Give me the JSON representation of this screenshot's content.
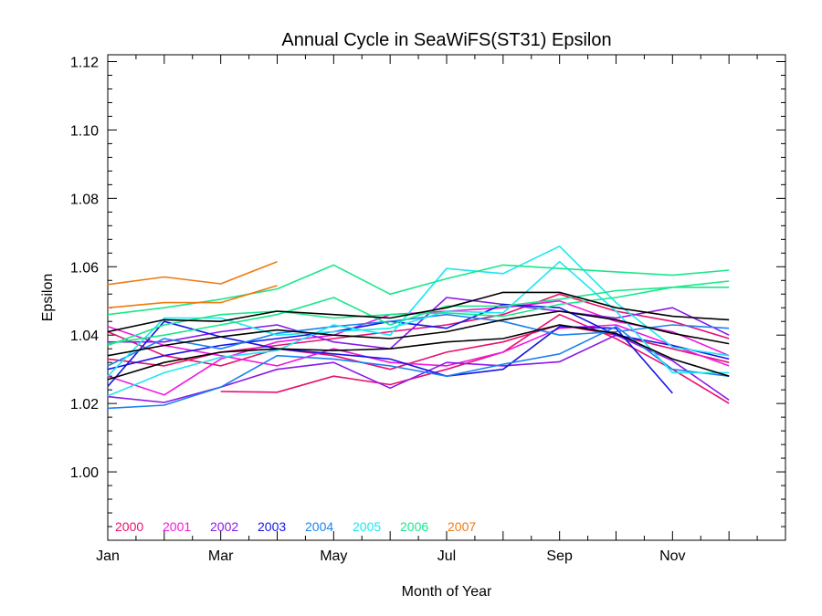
{
  "chart_data": {
    "type": "line",
    "title": "Annual Cycle in SeaWiFS(ST31) Epsilon",
    "xlabel": "Month of Year",
    "ylabel": "Epsilon",
    "xlim": [
      1,
      13
    ],
    "ylim": [
      0.98,
      1.122
    ],
    "x_ticks": [
      {
        "value": 1,
        "label": "Jan"
      },
      {
        "value": 3,
        "label": "Mar"
      },
      {
        "value": 5,
        "label": "May"
      },
      {
        "value": 7,
        "label": "Jul"
      },
      {
        "value": 9,
        "label": "Sep"
      },
      {
        "value": 11,
        "label": "Nov"
      }
    ],
    "y_ticks": [
      {
        "value": 1.0,
        "label": "1.00"
      },
      {
        "value": 1.02,
        "label": "1.02"
      },
      {
        "value": 1.04,
        "label": "1.04"
      },
      {
        "value": 1.06,
        "label": "1.06"
      },
      {
        "value": 1.08,
        "label": "1.08"
      },
      {
        "value": 1.1,
        "label": "1.10"
      },
      {
        "value": 1.12,
        "label": "1.12"
      }
    ],
    "legend_placement": "bottom-left",
    "legend": [
      {
        "name": "2000",
        "color": "#e8106e"
      },
      {
        "name": "2001",
        "color": "#f018e0"
      },
      {
        "name": "2002",
        "color": "#8a18ea"
      },
      {
        "name": "2003",
        "color": "#1414e6"
      },
      {
        "name": "2004",
        "color": "#1a82f0"
      },
      {
        "name": "2005",
        "color": "#1ae8f0"
      },
      {
        "name": "2006",
        "color": "#18e88a"
      },
      {
        "name": "2007",
        "color": "#f07a10"
      }
    ],
    "series": [
      {
        "color": "#e8106e",
        "x": [
          3,
          4,
          5,
          6,
          7,
          8,
          9,
          10,
          11,
          12
        ],
        "y": [
          1.0235,
          1.0233,
          1.028,
          1.0255,
          1.03,
          1.035,
          1.046,
          1.039,
          1.03,
          1.02
        ]
      },
      {
        "color": "#e8106e",
        "x": [
          1,
          2,
          3,
          4,
          5,
          6,
          7,
          8,
          9,
          10,
          11,
          12
        ],
        "y": [
          1.041,
          1.034,
          1.031,
          1.036,
          1.034,
          1.03,
          1.035,
          1.038,
          1.043,
          1.04,
          1.036,
          1.032
        ]
      },
      {
        "color": "#e8106e",
        "x": [
          1,
          2,
          3,
          4,
          5,
          6,
          7,
          8,
          9,
          10,
          11,
          12
        ],
        "y": [
          1.033,
          1.031,
          1.035,
          1.037,
          1.039,
          1.041,
          1.043,
          1.046,
          1.052,
          1.047,
          1.044,
          1.039
        ]
      },
      {
        "color": "#f018e0",
        "x": [
          1,
          2,
          3,
          4,
          5,
          6,
          7,
          8,
          9,
          10,
          11,
          12
        ],
        "y": [
          1.028,
          1.0225,
          1.033,
          1.038,
          1.04,
          1.046,
          1.047,
          1.048,
          1.05,
          1.044,
          1.041,
          1.034
        ]
      },
      {
        "color": "#f018e0",
        "x": [
          1,
          2,
          3,
          4,
          5,
          6,
          7,
          8,
          9,
          10,
          11,
          12
        ],
        "y": [
          1.0425,
          1.037,
          1.034,
          1.031,
          1.036,
          1.032,
          1.031,
          1.035,
          1.042,
          1.043,
          1.037,
          1.031
        ]
      },
      {
        "color": "#8a18ea",
        "x": [
          1,
          2,
          3,
          4,
          5,
          6,
          7,
          8,
          9,
          10,
          11,
          12
        ],
        "y": [
          1.022,
          1.0203,
          1.0248,
          1.03,
          1.032,
          1.0245,
          1.032,
          1.031,
          1.0322,
          1.04,
          1.0325,
          1.021
        ]
      },
      {
        "color": "#8a18ea",
        "x": [
          1,
          2,
          3,
          4,
          5,
          6,
          7,
          8,
          9,
          10,
          11,
          12
        ],
        "y": [
          1.038,
          1.038,
          1.041,
          1.043,
          1.038,
          1.036,
          1.051,
          1.049,
          1.047,
          1.045,
          1.048,
          1.04
        ]
      },
      {
        "color": "#1414e6",
        "x": [
          1,
          2,
          3,
          4,
          5,
          6,
          7,
          8,
          9,
          10,
          11
        ],
        "y": [
          1.025,
          1.044,
          1.0395,
          1.036,
          1.0345,
          1.033,
          1.028,
          1.03,
          1.0425,
          1.042,
          1.023
        ]
      },
      {
        "color": "#1414e6",
        "x": [
          1,
          2,
          3,
          4,
          5,
          6,
          7,
          8,
          9,
          10,
          11,
          12
        ],
        "y": [
          1.03,
          1.034,
          1.037,
          1.039,
          1.041,
          1.044,
          1.042,
          1.049,
          1.048,
          1.04,
          1.037,
          1.033
        ]
      },
      {
        "color": "#1a82f0",
        "x": [
          1,
          2,
          3,
          4,
          5,
          6,
          7,
          8,
          9,
          10,
          11,
          12
        ],
        "y": [
          1.0186,
          1.0195,
          1.0248,
          1.034,
          1.033,
          1.031,
          1.028,
          1.0315,
          1.0345,
          1.0425,
          1.03,
          1.028
        ]
      },
      {
        "color": "#1a82f0",
        "x": [
          1,
          2,
          3,
          4,
          5,
          6,
          7,
          8,
          9,
          10,
          11,
          12
        ],
        "y": [
          1.031,
          1.039,
          1.036,
          1.0405,
          1.0425,
          1.044,
          1.046,
          1.044,
          1.04,
          1.041,
          1.043,
          1.042
        ]
      },
      {
        "color": "#1ae8f0",
        "x": [
          1,
          2,
          3,
          4,
          5,
          6,
          7,
          8,
          9,
          10,
          11,
          12
        ],
        "y": [
          1.0222,
          1.029,
          1.0335,
          1.0355,
          1.043,
          1.04,
          1.0595,
          1.058,
          1.066,
          1.0495,
          1.0365,
          1.034
        ]
      },
      {
        "color": "#1ae8f0",
        "x": [
          1,
          2,
          3,
          4,
          5,
          6,
          7,
          8,
          9,
          10,
          11,
          12
        ],
        "y": [
          1.028,
          1.045,
          1.045,
          1.04,
          1.041,
          1.042,
          1.047,
          1.0465,
          1.0615,
          1.047,
          1.029,
          1.029
        ]
      },
      {
        "color": "#18e88a",
        "x": [
          1,
          2,
          3,
          4,
          5,
          6,
          7,
          8,
          9,
          10,
          11,
          12
        ],
        "y": [
          1.046,
          1.048,
          1.0505,
          1.0535,
          1.0605,
          1.052,
          1.0565,
          1.0605,
          1.0595,
          1.0585,
          1.0575,
          1.059
        ]
      },
      {
        "color": "#18e88a",
        "x": [
          1,
          2,
          3,
          4,
          5,
          6,
          7,
          8,
          9,
          10,
          11,
          12
        ],
        "y": [
          1.0375,
          1.04,
          1.043,
          1.046,
          1.051,
          1.043,
          1.0485,
          1.0485,
          1.0505,
          1.053,
          1.054,
          1.0558
        ]
      },
      {
        "color": "#18e88a",
        "x": [
          1,
          2,
          3,
          4,
          5,
          6,
          7,
          8,
          9,
          10,
          11,
          12
        ],
        "y": [
          1.037,
          1.043,
          1.046,
          1.047,
          1.045,
          1.046,
          1.0465,
          1.0455,
          1.049,
          1.051,
          1.054,
          1.054
        ]
      },
      {
        "color": "#f07a10",
        "x": [
          1,
          2,
          3,
          4
        ],
        "y": [
          1.0548,
          1.057,
          1.055,
          1.0615
        ]
      },
      {
        "color": "#f07a10",
        "x": [
          1,
          2,
          3,
          4
        ],
        "y": [
          1.048,
          1.0495,
          1.0495,
          1.0545
        ]
      },
      {
        "color": "#000000",
        "x": [
          1,
          2,
          3,
          4,
          5,
          6,
          7,
          8,
          9,
          10,
          11,
          12
        ],
        "y": [
          1.041,
          1.0445,
          1.044,
          1.047,
          1.046,
          1.045,
          1.048,
          1.0525,
          1.0525,
          1.048,
          1.0455,
          1.0445
        ]
      },
      {
        "color": "#000000",
        "x": [
          1,
          2,
          3,
          4,
          5,
          6,
          7,
          8,
          9,
          10,
          11,
          12
        ],
        "y": [
          1.034,
          1.037,
          1.0395,
          1.0415,
          1.04,
          1.039,
          1.041,
          1.0445,
          1.047,
          1.0445,
          1.0405,
          1.0375
        ]
      },
      {
        "color": "#000000",
        "x": [
          1,
          2,
          3,
          4,
          5,
          6,
          7,
          8,
          9,
          10,
          11,
          12
        ],
        "y": [
          1.027,
          1.032,
          1.035,
          1.036,
          1.0355,
          1.036,
          1.038,
          1.039,
          1.043,
          1.0405,
          1.033,
          1.028
        ]
      }
    ]
  }
}
